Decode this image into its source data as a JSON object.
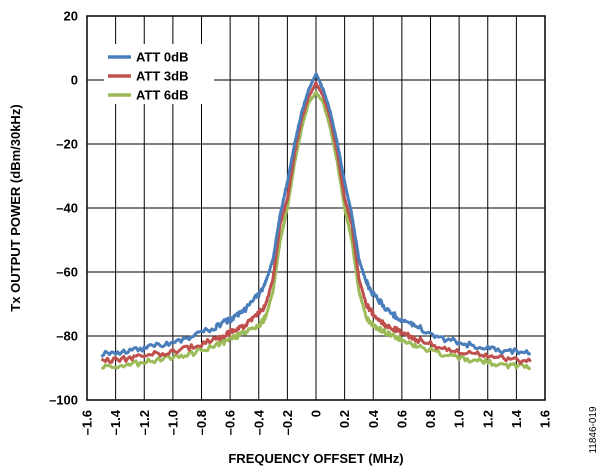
{
  "chart_data": {
    "type": "line",
    "xlabel": "FREQUENCY OFFSET (MHz)",
    "ylabel": "Tx OUTPUT POWER (dBm/30kHz)",
    "xlim": [
      -1.6,
      1.6
    ],
    "ylim": [
      -100,
      20
    ],
    "x_ticks": [
      -1.6,
      -1.4,
      -1.2,
      -1.0,
      -0.8,
      -0.6,
      -0.4,
      -0.2,
      0,
      0.2,
      0.4,
      0.6,
      0.8,
      1.0,
      1.2,
      1.4,
      1.6
    ],
    "x_tick_labels": [
      "–1.6",
      "–1.4",
      "–1.2",
      "–1.0",
      "–0.8",
      "–0.6",
      "–0.4",
      "–0.2",
      "0",
      "0.2",
      "0.4",
      "0.6",
      "0.8",
      "1.0",
      "1.2",
      "1.4",
      "1.6"
    ],
    "y_ticks": [
      20,
      0,
      -20,
      -40,
      -60,
      -80,
      -100
    ],
    "y_tick_labels": [
      "20",
      "0",
      "–20",
      "–40",
      "–60",
      "–80",
      "–100"
    ],
    "grid": true,
    "legend_position": "top-left",
    "figure_id": "11846-019",
    "series": [
      {
        "name": "ATT 0dB",
        "color": "#4a7ebb",
        "x": [
          -1.5,
          -1.3,
          -1.1,
          -0.9,
          -0.7,
          -0.6,
          -0.5,
          -0.4,
          -0.35,
          -0.3,
          -0.25,
          -0.2,
          -0.15,
          -0.1,
          -0.05,
          0,
          0.05,
          0.1,
          0.15,
          0.2,
          0.25,
          0.3,
          0.35,
          0.4,
          0.5,
          0.6,
          0.7,
          0.9,
          1.1,
          1.3,
          1.5
        ],
        "y": [
          -85.5,
          -84.5,
          -83,
          -81,
          -77,
          -75,
          -72,
          -67,
          -63,
          -56,
          -42,
          -32,
          -20,
          -10,
          -3,
          2,
          -3,
          -10,
          -20,
          -32,
          -42,
          -56,
          -63,
          -67,
          -72,
          -75,
          -77,
          -81,
          -83,
          -84.5,
          -85.5
        ]
      },
      {
        "name": "ATT 3dB",
        "color": "#c0504d",
        "x": [
          -1.5,
          -1.3,
          -1.1,
          -0.9,
          -0.7,
          -0.6,
          -0.5,
          -0.4,
          -0.35,
          -0.3,
          -0.25,
          -0.2,
          -0.15,
          -0.1,
          -0.05,
          0,
          0.05,
          0.1,
          0.15,
          0.2,
          0.25,
          0.3,
          0.35,
          0.4,
          0.5,
          0.6,
          0.7,
          0.9,
          1.1,
          1.3,
          1.5
        ],
        "y": [
          -88,
          -87,
          -85.5,
          -84,
          -81,
          -79,
          -77,
          -73,
          -70,
          -62,
          -45,
          -37,
          -23,
          -12,
          -5,
          -1,
          -5,
          -12,
          -23,
          -37,
          -45,
          -62,
          -70,
          -73,
          -77,
          -79,
          -81,
          -84,
          -85.5,
          -87,
          -88
        ]
      },
      {
        "name": "ATT 6dB",
        "color": "#9bbb59",
        "x": [
          -1.5,
          -1.3,
          -1.1,
          -0.9,
          -0.7,
          -0.6,
          -0.5,
          -0.4,
          -0.35,
          -0.3,
          -0.25,
          -0.2,
          -0.15,
          -0.1,
          -0.05,
          0,
          0.05,
          0.1,
          0.15,
          0.2,
          0.25,
          0.3,
          0.35,
          0.4,
          0.5,
          0.6,
          0.7,
          0.9,
          1.1,
          1.3,
          1.5
        ],
        "y": [
          -90,
          -89,
          -87.5,
          -86,
          -83,
          -81,
          -79,
          -77,
          -74,
          -66,
          -50,
          -40,
          -26,
          -15,
          -7,
          -4,
          -7,
          -15,
          -26,
          -40,
          -50,
          -66,
          -74,
          -77,
          -79,
          -81,
          -83,
          -86,
          -87.5,
          -89,
          -90
        ]
      }
    ]
  }
}
